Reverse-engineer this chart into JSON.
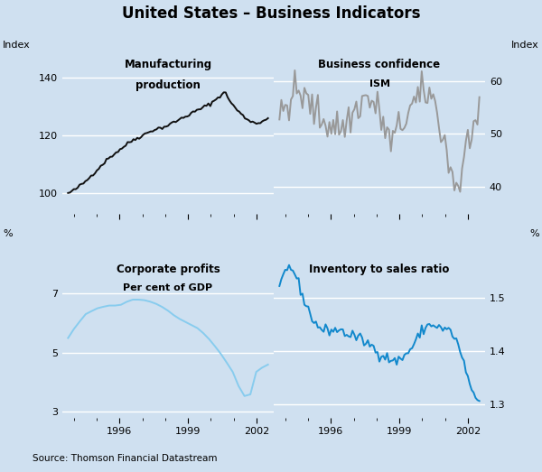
{
  "title": "United States – Business Indicators",
  "source": "Source: Thomson Financial Datastream",
  "background_color": "#cfe0f0",
  "top_left": {
    "label_line1": "Manufacturing",
    "label_line2": "production",
    "ylabel_left": "Index",
    "ylim": [
      93,
      148
    ],
    "yticks": [
      100,
      120,
      140
    ],
    "color": "#111111"
  },
  "top_right": {
    "label_line1": "Business confidence",
    "label_line2": "ISM",
    "ylabel_right": "Index",
    "ylim": [
      35,
      65
    ],
    "yticks": [
      40,
      50,
      60
    ],
    "color": "#999999"
  },
  "bot_left": {
    "label_line1": "Corporate profits",
    "label_line2": "Per cent of GDP",
    "ylabel_left": "%",
    "ylim": [
      2.8,
      8.2
    ],
    "yticks": [
      3,
      5,
      7
    ],
    "color": "#88ccee"
  },
  "bot_right": {
    "label_line1": "Inventory to sales ratio",
    "label_line2": "",
    "ylabel_right": "%",
    "ylim": [
      1.275,
      1.575
    ],
    "yticks": [
      1.3,
      1.4,
      1.5
    ],
    "color": "#1188cc"
  },
  "xlim": [
    1993.5,
    2002.75
  ],
  "xticks": [
    1996,
    1999,
    2002
  ],
  "grid_color": "#ffffff",
  "line_width": 1.4
}
